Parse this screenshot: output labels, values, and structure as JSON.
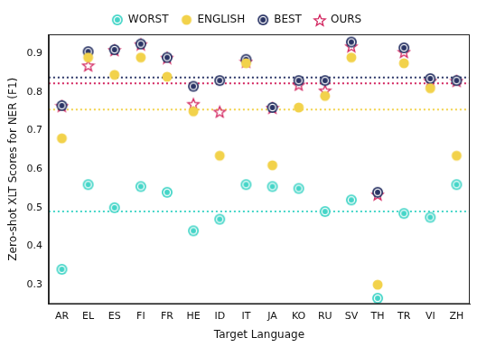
{
  "chart_data": {
    "type": "scatter",
    "x_label": "Target Language",
    "y_label": "Zero-shot XLT Scores for NER (F1)",
    "categories": [
      "AR",
      "EL",
      "ES",
      "FI",
      "FR",
      "HE",
      "ID",
      "IT",
      "JA",
      "KO",
      "RU",
      "SV",
      "TH",
      "TR",
      "VI",
      "ZH"
    ],
    "series": [
      {
        "name": "WORST",
        "color": "#45d6c8",
        "marker": "circle_dot",
        "mean": 0.49,
        "values": [
          0.34,
          0.56,
          0.5,
          0.555,
          0.54,
          0.44,
          0.47,
          0.56,
          0.555,
          0.55,
          0.49,
          0.52,
          0.265,
          0.485,
          0.475,
          0.56
        ]
      },
      {
        "name": "ENGLISH",
        "color": "#f2d24b",
        "marker": "circle",
        "mean": 0.755,
        "values": [
          0.68,
          0.89,
          0.845,
          0.89,
          0.84,
          0.75,
          0.635,
          0.875,
          0.61,
          0.76,
          0.79,
          0.89,
          0.3,
          0.875,
          0.81,
          0.635
        ]
      },
      {
        "name": "BEST",
        "color": "#2b3566",
        "marker": "circle_dot",
        "mean": 0.838,
        "values": [
          0.765,
          0.905,
          0.91,
          0.925,
          0.89,
          0.815,
          0.83,
          0.885,
          0.76,
          0.83,
          0.83,
          0.93,
          0.54,
          0.915,
          0.835,
          0.83
        ]
      },
      {
        "name": "OURS",
        "color": "#d2245e",
        "marker": "star",
        "mean": 0.823,
        "values": [
          0.765,
          0.87,
          0.91,
          0.925,
          0.89,
          0.77,
          0.75,
          0.88,
          0.76,
          0.82,
          0.805,
          0.92,
          0.535,
          0.905,
          0.83,
          0.83
        ]
      }
    ],
    "ylim": [
      0.25,
      0.95
    ],
    "yticks": [
      0.3,
      0.4,
      0.5,
      0.6,
      0.7,
      0.8,
      0.9
    ],
    "grid": false,
    "legend": "top"
  }
}
